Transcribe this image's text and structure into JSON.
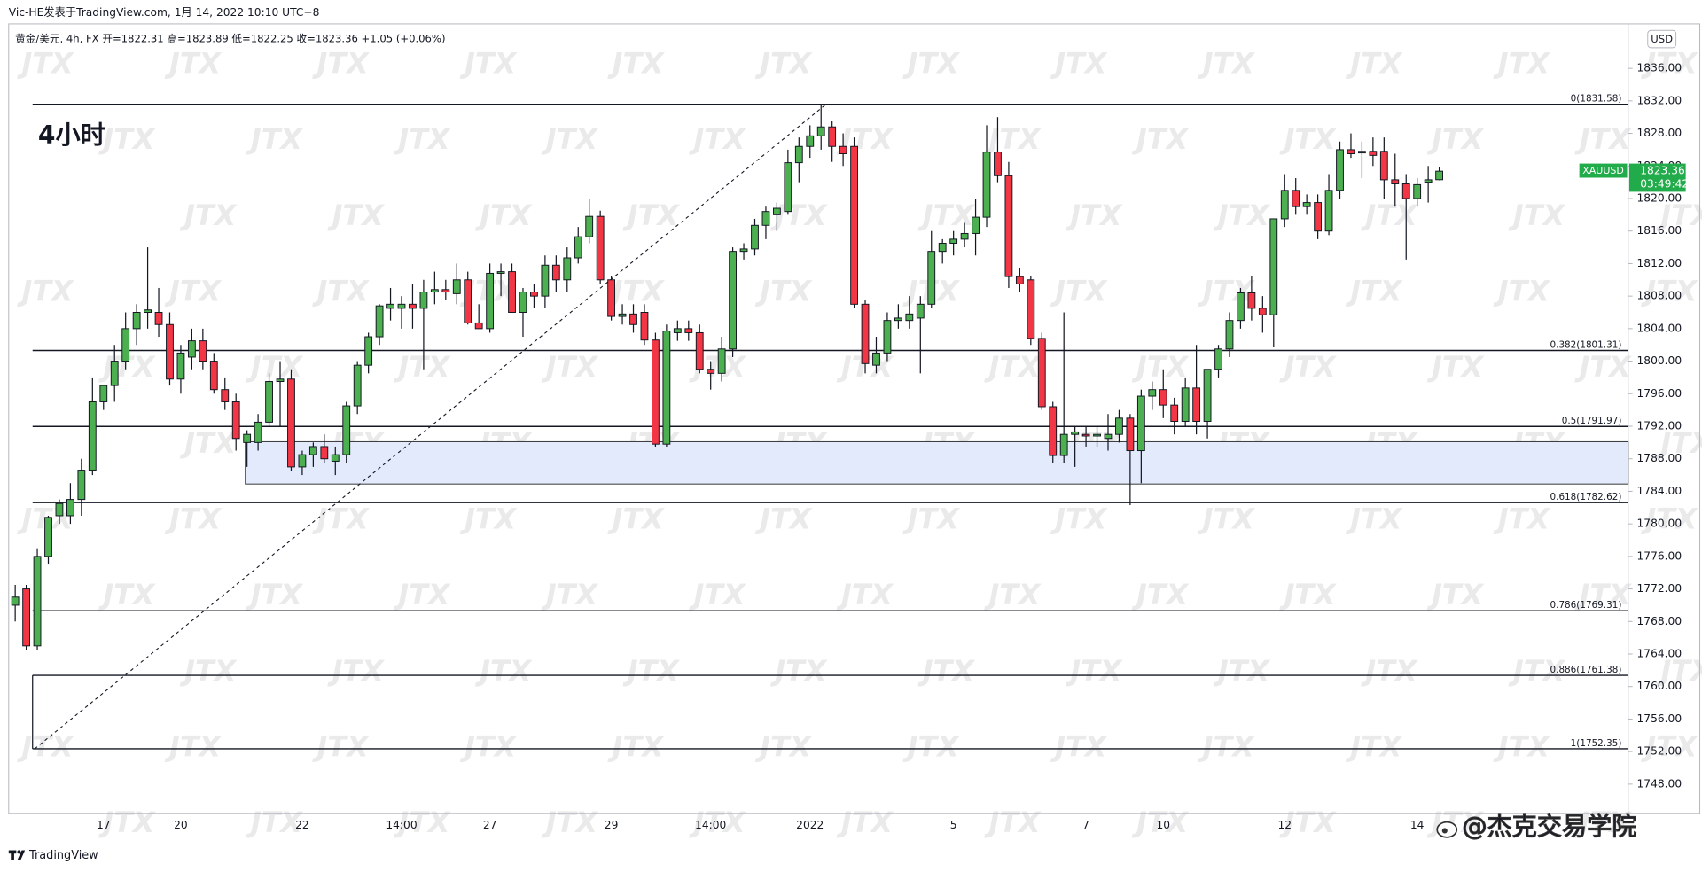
{
  "chart_data": {
    "type": "candlestick",
    "publisher": "Vic-HE发表于TradingView.com, 1月 14, 2022 10:10 UTC+8",
    "legend": "黄金/美元, 4h, FX  开=1822.31 高=1823.89 低=1822.25 收=1823.36 +1.05 (+0.06%)",
    "annotation": "4小时",
    "currency": "USD",
    "watermark": "JTX",
    "footer": "TradingView",
    "credit": "@杰克交易学院",
    "up_color": "#4caf50",
    "down_color": "#f23645",
    "price_tag": {
      "symbol": "XAUUSD",
      "countdown": "03:49:42",
      "color": "#22ab4a"
    },
    "categories": [
      null,
      null,
      null,
      null,
      null,
      null,
      null,
      null,
      "17",
      null,
      null,
      null,
      null,
      null,
      null,
      "20",
      null,
      null,
      null,
      null,
      null,
      null,
      null,
      null,
      null,
      null,
      "22",
      null,
      null,
      null,
      null,
      null,
      null,
      null,
      null,
      "14:00",
      null,
      null,
      null,
      null,
      null,
      null,
      null,
      "27",
      null,
      null,
      null,
      null,
      null,
      null,
      null,
      null,
      null,
      null,
      "29",
      null,
      null,
      null,
      null,
      null,
      null,
      null,
      null,
      "14:00",
      null,
      null,
      null,
      null,
      null,
      null,
      null,
      null,
      "2022",
      null,
      null,
      null,
      null,
      null,
      null,
      null,
      null,
      null,
      null,
      null,
      null,
      "5",
      null,
      null,
      null,
      null,
      null,
      null,
      null,
      null,
      null,
      null,
      null,
      "7",
      null,
      null,
      null,
      null,
      null,
      null,
      "10",
      null,
      null,
      null,
      null,
      null,
      null,
      null,
      null,
      null,
      null,
      "12",
      null,
      null,
      null,
      null,
      null,
      null,
      null,
      null,
      null,
      null,
      null,
      "14",
      null,
      null
    ],
    "open": [
      1770,
      1772,
      1765,
      1776,
      1781,
      1781,
      1783,
      1786.6,
      1795,
      1797,
      1800,
      1804,
      1806,
      1806,
      1804.5,
      1797.8,
      1800.5,
      1802.5,
      1800,
      1796.5,
      1795,
      1790,
      1790,
      1792.5,
      1797.5,
      1797.8,
      1787,
      1788.5,
      1789.5,
      1787.7,
      1788.5,
      1794.5,
      1799.5,
      1803,
      1806.5,
      1806.5,
      1807,
      1806.5,
      1808.5,
      1808.8,
      1808.3,
      1810,
      1804.7,
      1804,
      1810.8,
      1811,
      1806,
      1808.5,
      1808,
      1811.8,
      1810,
      1812.7,
      1815.3,
      1817.8,
      1810,
      1805.5,
      1805.8,
      1806,
      1802.6,
      1789.8,
      1803.5,
      1804,
      1803.5,
      1799,
      1798.5,
      1801.5,
      1813.5,
      1813.8,
      1816.7,
      1818,
      1818.4,
      1824.4,
      1826.4,
      1827.7,
      1828.8,
      1826.4,
      1826.4,
      1807,
      1799.5,
      1801,
      1805,
      1805,
      1805.3,
      1807,
      1813.5,
      1814.5,
      1815,
      1815.7,
      1817.7,
      1825.7,
      1822.8,
      1810.4,
      1810,
      1802.8,
      1794.4,
      1788.4,
      1791,
      1791,
      1790.8,
      1790.5,
      1791,
      1793,
      1789,
      1795.7,
      1796.5,
      1794.6,
      1792.6,
      1796.7,
      1792.6,
      1799,
      1801.5,
      1805,
      1808.4,
      1806.5,
      1805.7,
      1817.5,
      1821,
      1819,
      1819.5,
      1816,
      1821,
      1826,
      1825.6,
      1825.8,
      1825.8,
      1822.3,
      1821.8,
      1820,
      1822,
      1822.31
    ],
    "high": [
      1772.5,
      1772.5,
      1777,
      1781,
      1783,
      1785,
      1788,
      1798,
      1797,
      1802,
      1806,
      1807,
      1814,
      1809,
      1806,
      1802,
      1804,
      1804,
      1801,
      1798,
      1796,
      1791.5,
      1793.5,
      1798.5,
      1800,
      1799,
      1789,
      1790,
      1791,
      1789.5,
      1795,
      1800,
      1803.5,
      1807,
      1809,
      1808,
      1809.5,
      1810,
      1811,
      1810,
      1812,
      1811,
      1807,
      1812,
      1812,
      1812,
      1809,
      1809.5,
      1813,
      1813,
      1814,
      1816.5,
      1820,
      1818.5,
      1810.5,
      1807,
      1807,
      1807,
      1803.5,
      1804.5,
      1805,
      1805,
      1804.5,
      1800,
      1803,
      1814,
      1814.5,
      1817.5,
      1819,
      1819.5,
      1826,
      1827.5,
      1829,
      1831.5,
      1829.5,
      1828,
      1827.5,
      1807.5,
      1803,
      1806,
      1807,
      1808,
      1808,
      1816,
      1815,
      1816,
      1817,
      1820,
      1829,
      1830,
      1824.5,
      1811.5,
      1810.5,
      1803.5,
      1795,
      1806,
      1792,
      1792,
      1792,
      1793.5,
      1794,
      1793.5,
      1796.5,
      1797.5,
      1799,
      1795.5,
      1798,
      1802,
      1799,
      1802,
      1806,
      1809,
      1810.5,
      1808,
      1817.5,
      1823,
      1822.5,
      1820.5,
      1820.5,
      1823,
      1827,
      1828,
      1827,
      1827.5,
      1827.5,
      1825.5,
      1823,
      1822.5,
      1824,
      1823.89
    ],
    "low": [
      1768,
      1764.5,
      1764.5,
      1775,
      1780,
      1780,
      1781,
      1786,
      1794,
      1795,
      1799,
      1802,
      1804,
      1803,
      1797,
      1796,
      1799,
      1799,
      1796,
      1794,
      1789,
      1787,
      1789,
      1792,
      1792,
      1786.5,
      1786,
      1787,
      1787.5,
      1786,
      1787.5,
      1793.5,
      1798.5,
      1802,
      1805,
      1804,
      1804,
      1799,
      1807,
      1807.5,
      1807,
      1804.5,
      1804,
      1803.5,
      1808,
      1806,
      1803,
      1806.5,
      1806.5,
      1808.5,
      1808.5,
      1812,
      1814.5,
      1809.5,
      1805,
      1804.5,
      1803.5,
      1802,
      1789.5,
      1789.5,
      1802.5,
      1802.5,
      1798.5,
      1796.5,
      1797.5,
      1800.5,
      1812.5,
      1813,
      1815,
      1816,
      1818,
      1822,
      1825,
      1826,
      1824.5,
      1824,
      1806.5,
      1798.5,
      1798.5,
      1800,
      1804,
      1804,
      1798.5,
      1806.5,
      1812,
      1813,
      1814,
      1813,
      1816.5,
      1822,
      1809,
      1808.5,
      1802,
      1794,
      1787.5,
      1787.5,
      1787,
      1789.5,
      1789.5,
      1789,
      1790,
      1782.3,
      1785,
      1794,
      1793,
      1791,
      1792,
      1791,
      1790.5,
      1798,
      1800.5,
      1804,
      1805,
      1803.5,
      1801.7,
      1816.5,
      1818,
      1818,
      1815,
      1815.5,
      1820,
      1825,
      1822.5,
      1824,
      1820,
      1819,
      1812.5,
      1819,
      1819.5,
      1822.25
    ],
    "close": [
      1771,
      1765,
      1776,
      1780.8,
      1782.5,
      1783,
      1786.6,
      1795,
      1797,
      1800,
      1804,
      1806,
      1806.3,
      1804.5,
      1797.8,
      1801,
      1802.5,
      1800,
      1796.5,
      1795,
      1790.5,
      1791,
      1792.5,
      1797.5,
      1797.8,
      1787,
      1788.5,
      1789.5,
      1788,
      1788.5,
      1794.5,
      1799.5,
      1803,
      1806.8,
      1807,
      1807,
      1806.5,
      1808.5,
      1808.8,
      1808.5,
      1810,
      1804.7,
      1804,
      1810.8,
      1811,
      1806,
      1808.5,
      1808,
      1811.8,
      1810,
      1812.7,
      1815.3,
      1817.8,
      1810,
      1805.5,
      1805.8,
      1804.5,
      1802.6,
      1789.8,
      1803.7,
      1804,
      1803.5,
      1799,
      1798.5,
      1801.5,
      1813.5,
      1813.8,
      1816.7,
      1818.4,
      1818.8,
      1824.4,
      1826.4,
      1827.7,
      1828.8,
      1826.4,
      1825.5,
      1807,
      1799.7,
      1801,
      1805,
      1805.3,
      1805.8,
      1807,
      1813.5,
      1814.5,
      1815,
      1815.7,
      1817.7,
      1825.7,
      1822.8,
      1810.4,
      1809.5,
      1802.8,
      1794.4,
      1788.4,
      1791,
      1791.3,
      1790.8,
      1791,
      1791,
      1793,
      1789,
      1795.7,
      1796.5,
      1794.6,
      1792.6,
      1796.7,
      1792.6,
      1799,
      1801.5,
      1805,
      1808.4,
      1806.5,
      1805.7,
      1817.5,
      1821,
      1819,
      1819.5,
      1816,
      1821,
      1826,
      1825.5,
      1825.8,
      1825.3,
      1822.3,
      1821.8,
      1820,
      1821.7,
      1822.3,
      1823.36
    ],
    "ylim": [
      1744.4,
      1841.47
    ],
    "yticks": [
      {
        "value": 1748,
        "label": "1748.00"
      },
      {
        "value": 1752,
        "label": "1752.00"
      },
      {
        "value": 1756,
        "label": "1756.00"
      },
      {
        "value": 1760,
        "label": "1760.00"
      },
      {
        "value": 1764,
        "label": "1764.00"
      },
      {
        "value": 1768,
        "label": "1768.00"
      },
      {
        "value": 1772,
        "label": "1772.00"
      },
      {
        "value": 1776,
        "label": "1776.00"
      },
      {
        "value": 1780,
        "label": "1780.00"
      },
      {
        "value": 1784,
        "label": "1784.00"
      },
      {
        "value": 1788,
        "label": "1788.00"
      },
      {
        "value": 1792,
        "label": "1792.00"
      },
      {
        "value": 1796,
        "label": "1796.00"
      },
      {
        "value": 1800,
        "label": "1800.00"
      },
      {
        "value": 1804,
        "label": "1804.00"
      },
      {
        "value": 1808,
        "label": "1808.00"
      },
      {
        "value": 1812,
        "label": "1812.00"
      },
      {
        "value": 1816,
        "label": "1816.00"
      },
      {
        "value": 1820,
        "label": "1820.00"
      },
      {
        "value": 1824,
        "label": "1824.00"
      },
      {
        "value": 1828,
        "label": "1828.00"
      },
      {
        "value": 1832,
        "label": "1832.00"
      },
      {
        "value": 1836,
        "label": "1836.00"
      }
    ],
    "fib_levels": [
      {
        "value": 1831.58,
        "label": "0(1831.58)"
      },
      {
        "value": 1801.31,
        "label": "0.382(1801.31)"
      },
      {
        "value": 1791.97,
        "label": "0.5(1791.97)"
      },
      {
        "value": 1782.62,
        "label": "0.618(1782.62)"
      },
      {
        "value": 1769.31,
        "label": "0.786(1769.31)"
      },
      {
        "value": 1761.38,
        "label": "0.886(1761.38)"
      },
      {
        "value": 1752.35,
        "label": "1(1752.35)"
      }
    ],
    "zone": {
      "top": 1790.1,
      "bottom": 1784.9,
      "color": "#e3eafc"
    }
  }
}
